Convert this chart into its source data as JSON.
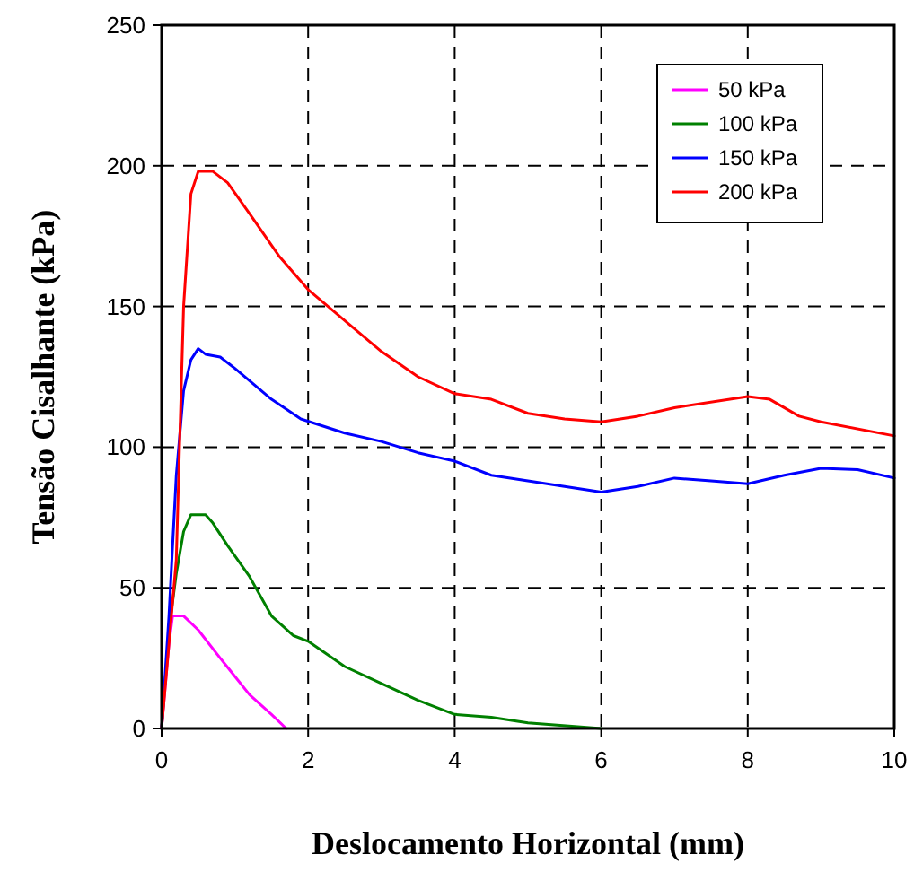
{
  "chart_data": {
    "type": "line",
    "xlabel": "Deslocamento Horizontal (mm)",
    "ylabel": "Tensão Cisalhante (kPa)",
    "xlim": [
      0,
      10
    ],
    "xticks": [
      0,
      2,
      4,
      6,
      8,
      10
    ],
    "ylim": [
      0,
      250
    ],
    "yticks": [
      0,
      50,
      100,
      150,
      200,
      250
    ],
    "grid": true,
    "legend": "top right",
    "marker": "none",
    "line_style": "solid",
    "series": [
      {
        "name": "50 kPa",
        "color": "#ff00ff",
        "x": [
          0,
          0.1,
          0.15,
          0.3,
          0.5,
          0.8,
          1.2,
          1.5,
          1.7
        ],
        "values": [
          0,
          30,
          40,
          40,
          35,
          25,
          12,
          5,
          0
        ]
      },
      {
        "name": "100 kPa",
        "color": "#008000",
        "x": [
          0,
          0.1,
          0.2,
          0.3,
          0.4,
          0.6,
          0.7,
          0.9,
          1.2,
          1.5,
          1.8,
          2,
          2.5,
          3,
          3.5,
          4,
          4.5,
          5,
          6
        ],
        "values": [
          0,
          35,
          55,
          70,
          76,
          76,
          73,
          65,
          54,
          40,
          33,
          31,
          22,
          16,
          10,
          5,
          4,
          2,
          0
        ]
      },
      {
        "name": "150 kPa",
        "color": "#0000ff",
        "x": [
          0,
          0.1,
          0.2,
          0.3,
          0.4,
          0.5,
          0.6,
          0.8,
          1,
          1.5,
          1.9,
          2.5,
          3,
          3.5,
          4,
          4.5,
          5,
          5.5,
          6,
          6.5,
          7,
          7.5,
          8,
          8.5,
          9,
          9.5,
          10
        ],
        "values": [
          0,
          40,
          90,
          120,
          131,
          135,
          133,
          132,
          128,
          117,
          110,
          105,
          102,
          98,
          95,
          90,
          88,
          86,
          84,
          86,
          89,
          88,
          87,
          90,
          92.5,
          92,
          89
        ]
      },
      {
        "name": "200 kPa",
        "color": "#ff0000",
        "x": [
          0,
          0.2,
          0.3,
          0.4,
          0.5,
          0.7,
          0.9,
          1.2,
          1.6,
          2,
          2.5,
          3,
          3.5,
          4,
          4.5,
          5,
          5.5,
          6,
          6.5,
          7,
          8,
          8.3,
          8.7,
          9,
          10
        ],
        "values": [
          0,
          60,
          150,
          190,
          198,
          198,
          194,
          183,
          168,
          156,
          145,
          134,
          125,
          119,
          117,
          112,
          110,
          109,
          111,
          114,
          118,
          117,
          111,
          109,
          104
        ]
      }
    ]
  }
}
